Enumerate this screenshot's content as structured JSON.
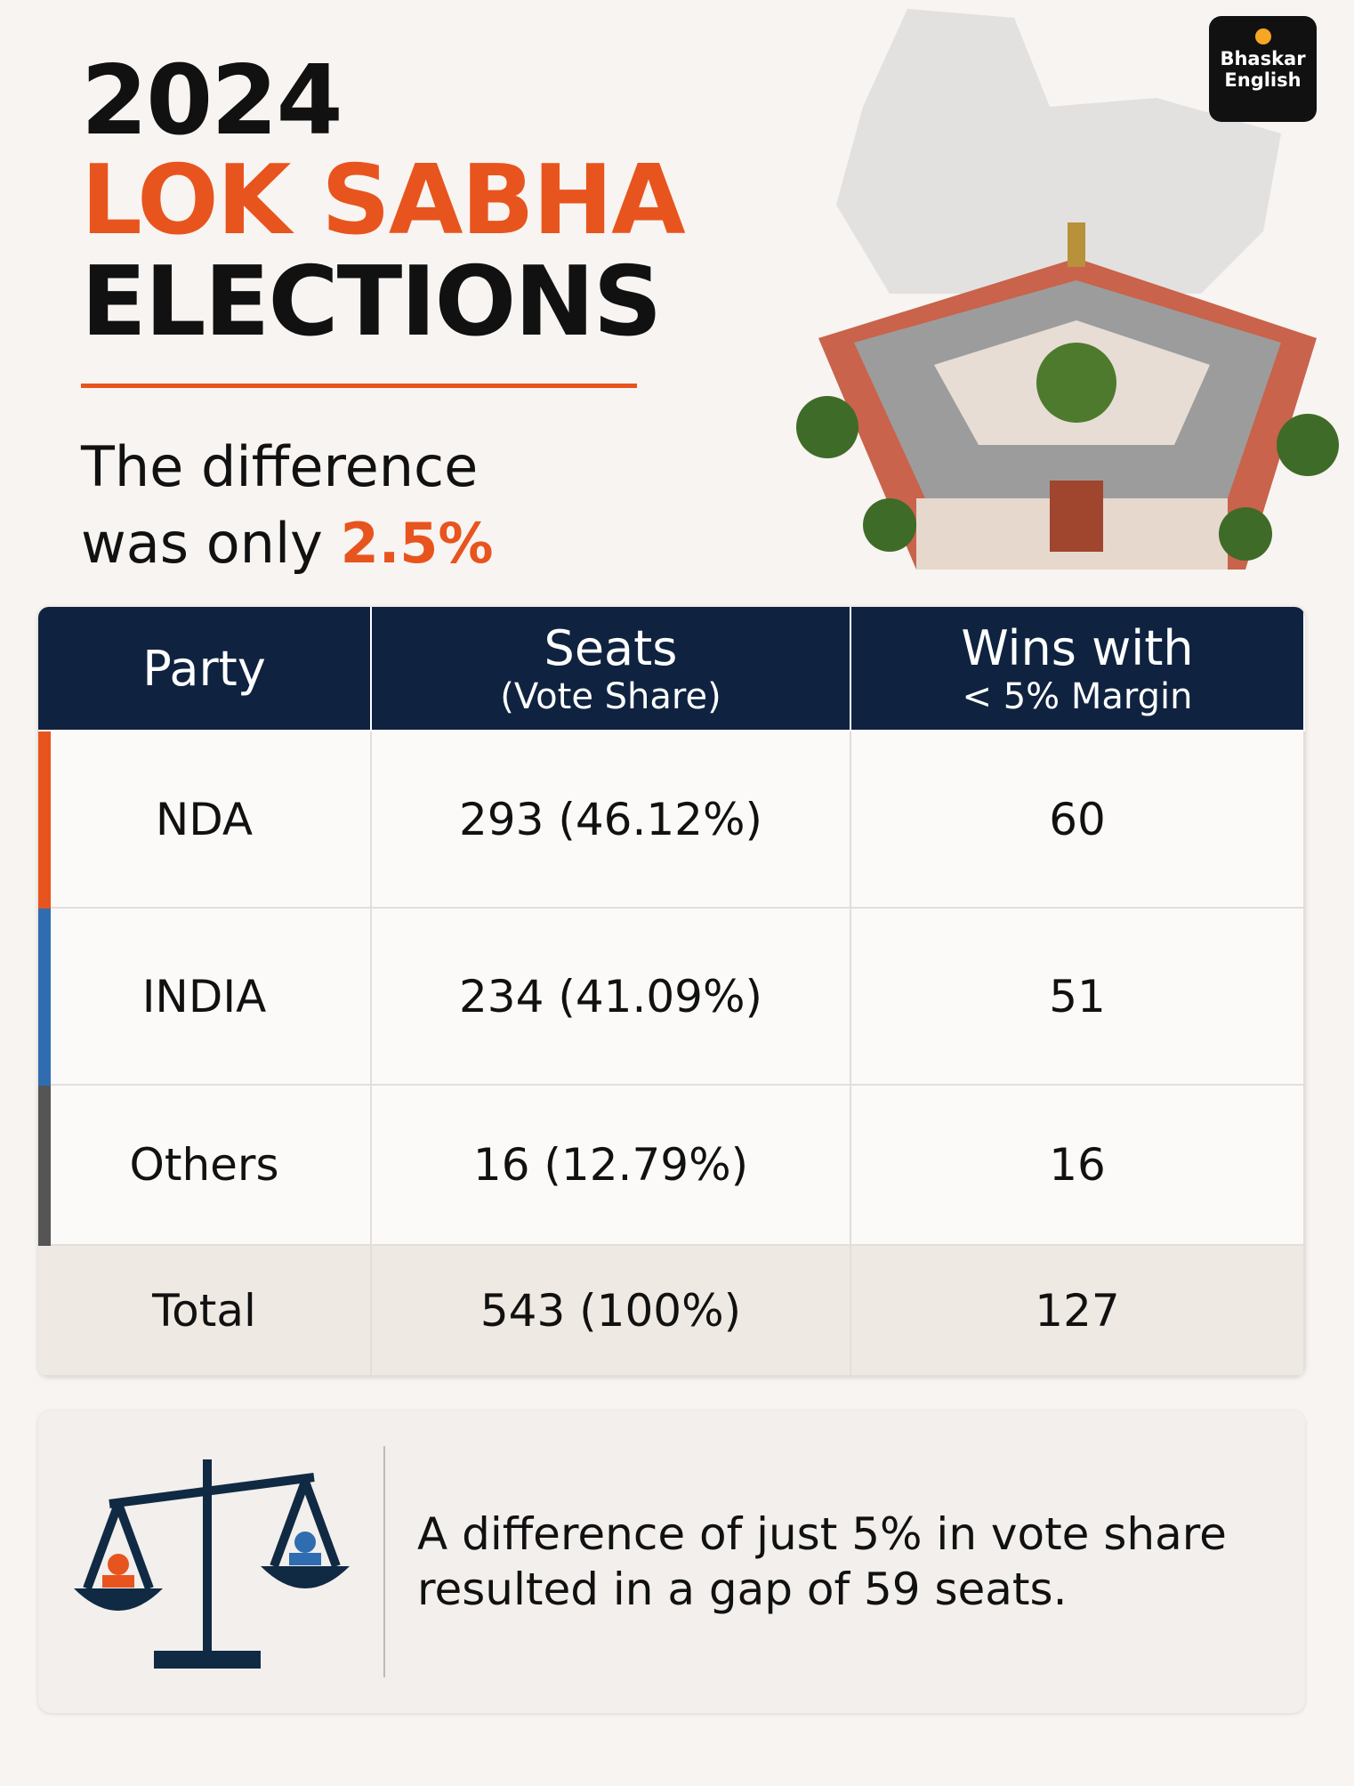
{
  "header": {
    "title_lines": [
      "2024",
      "LOK SABHA",
      "ELECTIONS"
    ],
    "subtitle_line1": "The difference",
    "subtitle_line2": "was only",
    "subtitle_highlight": "2.5%"
  },
  "logo": {
    "line1": "Bhaskar",
    "line2": "English"
  },
  "table": {
    "headers": [
      {
        "main": "Party"
      },
      {
        "main": "Seats",
        "sub": "(Vote Share)"
      },
      {
        "main": "Wins with",
        "sub": "< 5% Margin"
      }
    ],
    "rows": [
      [
        "NDA",
        "293 (46.12%)",
        "60"
      ],
      [
        "INDIA",
        "234 (41.09%)",
        "51"
      ],
      [
        "Others",
        "16 (12.79%)",
        "16"
      ],
      [
        "Total",
        "543 (100%)",
        "127"
      ]
    ]
  },
  "note": {
    "lines": [
      "A difference of just 5% in vote share",
      "resulted in a gap of 59 seats."
    ]
  }
}
